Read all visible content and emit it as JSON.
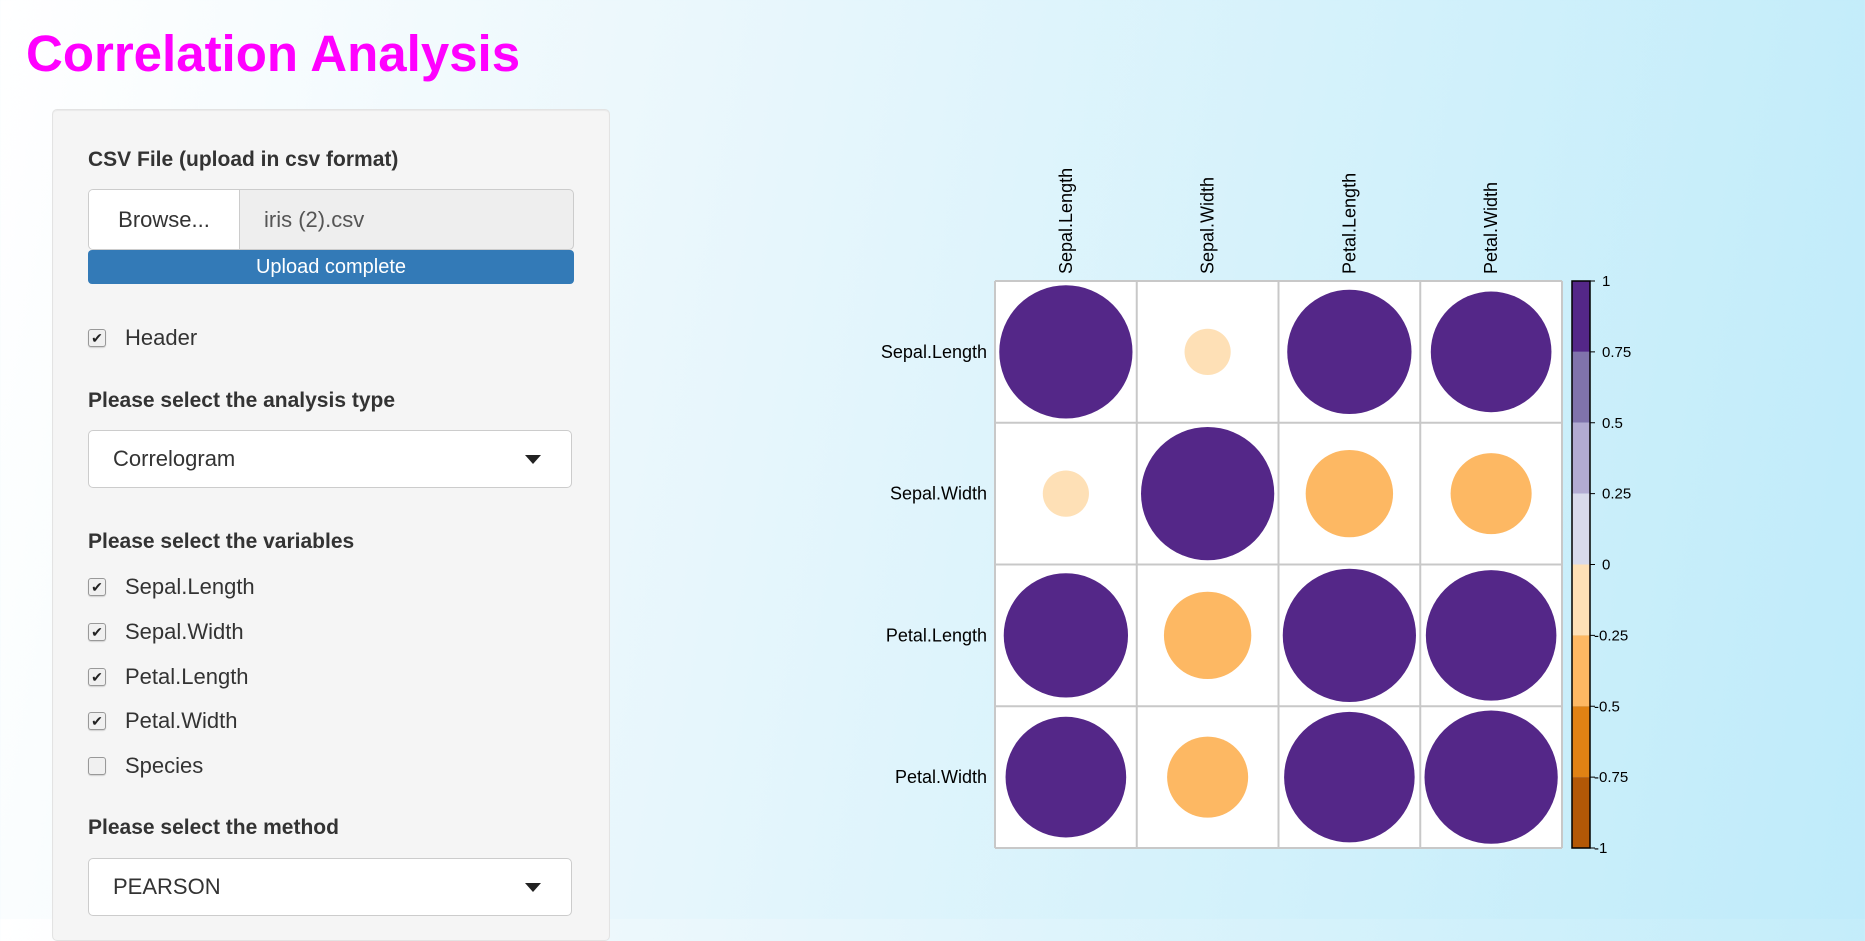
{
  "title": "Correlation Analysis",
  "panel": {
    "file_label": "CSV File (upload in csv format)",
    "browse_label": "Browse...",
    "file_name": "iris (2).csv",
    "upload_status": "Upload complete",
    "header_checkbox": {
      "label": "Header",
      "checked": true
    },
    "analysis_label": "Please select the analysis type",
    "analysis_value": "Correlogram",
    "variables_label": "Please select the variables",
    "variables": [
      {
        "label": "Sepal.Length",
        "checked": true
      },
      {
        "label": "Sepal.Width",
        "checked": true
      },
      {
        "label": "Petal.Length",
        "checked": true
      },
      {
        "label": "Petal.Width",
        "checked": true
      },
      {
        "label": "Species",
        "checked": false
      }
    ],
    "method_label": "Please select the method",
    "method_value": "PEARSON"
  },
  "colors": {
    "title": "#ff00ff",
    "upload_bar": "#337ab7"
  },
  "chart_data": {
    "type": "heatmap",
    "variables": [
      "Sepal.Length",
      "Sepal.Width",
      "Petal.Length",
      "Petal.Width"
    ],
    "matrix": [
      [
        1.0,
        -0.12,
        0.87,
        0.82
      ],
      [
        -0.12,
        1.0,
        -0.43,
        -0.37
      ],
      [
        0.87,
        -0.43,
        1.0,
        0.96
      ],
      [
        0.82,
        -0.37,
        0.96,
        1.0
      ]
    ],
    "glyph": "circle",
    "colorbar": {
      "range": [
        -1,
        1
      ],
      "ticks": [
        "1",
        "0.75",
        "0.5",
        "0.25",
        "0",
        "-0.25",
        "-0.5",
        "-0.75",
        "-1"
      ],
      "bins": [
        {
          "from": 0.75,
          "to": 1,
          "color": "#542788"
        },
        {
          "from": 0.5,
          "to": 0.75,
          "color": "#8073ac"
        },
        {
          "from": 0.25,
          "to": 0.5,
          "color": "#b2abd2"
        },
        {
          "from": 0,
          "to": 0.25,
          "color": "#d8daeb"
        },
        {
          "from": -0.25,
          "to": 0,
          "color": "#fee0b6"
        },
        {
          "from": -0.5,
          "to": -0.25,
          "color": "#fdb863"
        },
        {
          "from": -0.75,
          "to": -0.5,
          "color": "#e08214"
        },
        {
          "from": -1,
          "to": -0.75,
          "color": "#b35806"
        }
      ]
    }
  }
}
